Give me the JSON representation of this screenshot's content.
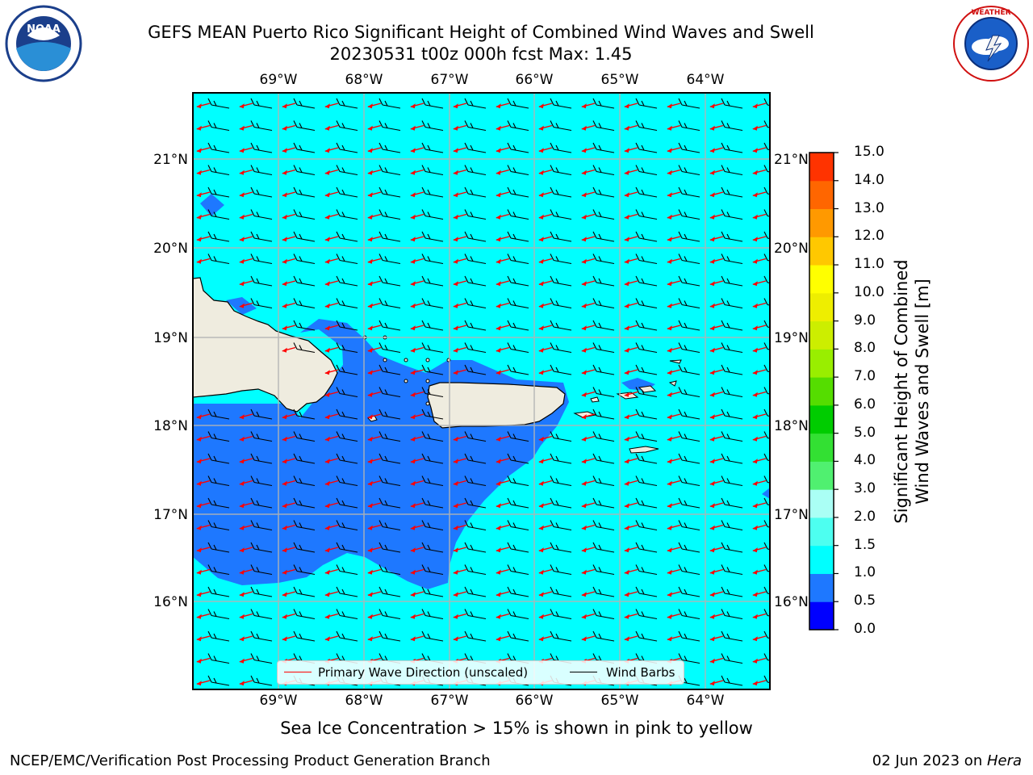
{
  "header": {
    "title_line1": "GEFS MEAN Puerto Rico Significant Height of Combined Wind Waves and Swell",
    "title_line2": "20230531 t00z 000h fcst   Max: 1.45"
  },
  "logos": {
    "left": "NOAA",
    "right": "NATIONAL WEATHER SERVICE"
  },
  "map": {
    "lon_ticks": [
      "69°W",
      "68°W",
      "67°W",
      "66°W",
      "65°W",
      "64°W"
    ],
    "lat_ticks": [
      "21°N",
      "20°N",
      "19°N",
      "18°N",
      "17°N",
      "16°N"
    ],
    "legend": {
      "wave_label": "Primary Wave Direction (unscaled)",
      "barb_label": "Wind Barbs",
      "wave_color": "#ff0000",
      "barb_color": "#000000"
    },
    "colors": {
      "ocean_low": "#00ffff",
      "ocean_mid": "#1e78ff",
      "land": "#efecdf"
    }
  },
  "colorbar": {
    "title_line1": "Significant Height of Combined",
    "title_line2": "Wind Waves and Swell [m]",
    "labels": [
      "15.0",
      "14.0",
      "13.0",
      "12.0",
      "11.0",
      "10.0",
      "9.0",
      "8.0",
      "7.0",
      "6.0",
      "5.0",
      "4.0",
      "3.0",
      "2.0",
      "1.5",
      "1.0",
      "0.5",
      "0.0"
    ],
    "colors": [
      "#0000ff",
      "#1e78ff",
      "#00ffff",
      "#4dfff0",
      "#aafff5",
      "#50f070",
      "#33e033",
      "#00cc00",
      "#55dd00",
      "#99ee00",
      "#ccee00",
      "#eeee00",
      "#ffff00",
      "#ffc800",
      "#ff9900",
      "#ff6600",
      "#ff3300"
    ]
  },
  "caption": "Sea Ice Concentration > 15% is shown in pink to yellow",
  "footer": {
    "left": "NCEP/EMC/Verification Post Processing Product Generation Branch",
    "right_date": "02 Jun 2023 on ",
    "right_host": "Hera"
  }
}
